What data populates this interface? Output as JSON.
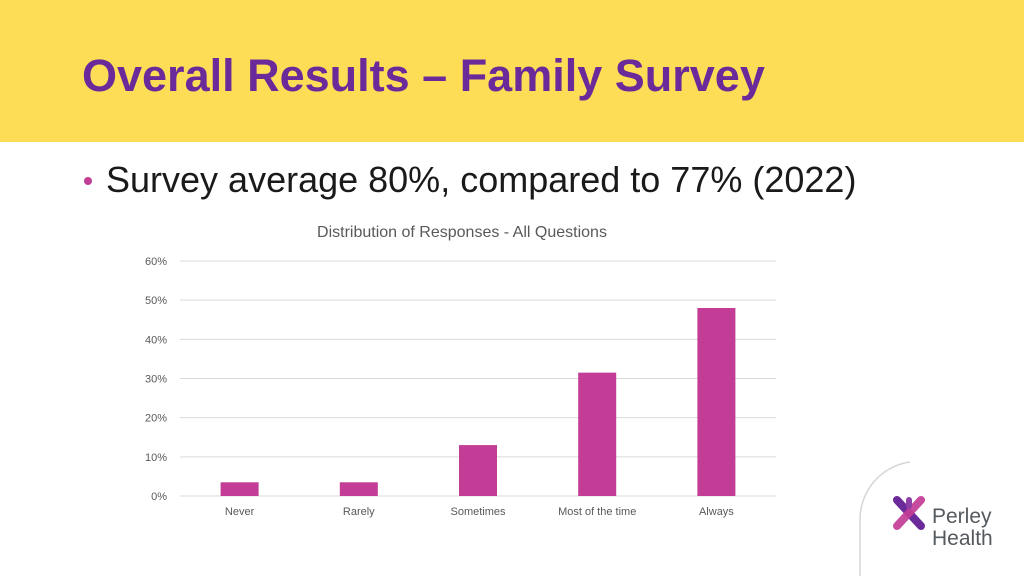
{
  "slide": {
    "title": "Overall Results – Family Survey",
    "bullet": "Survey average 80%, compared to 77% (2022)"
  },
  "colors": {
    "header_band": "#FEDD56",
    "title": "#6B2A99",
    "bar": "#C33D96",
    "bullet": "#C33D96",
    "grid": "#d9d9d9"
  },
  "logo": {
    "line1": "Perley",
    "line2": "Health",
    "icon": "perley-cross-icon"
  },
  "chart_data": {
    "type": "bar",
    "title": "Distribution of Responses - All Questions",
    "categories": [
      "Never",
      "Rarely",
      "Sometimes",
      "Most of the time",
      "Always"
    ],
    "values": [
      3.5,
      3.5,
      13,
      31.5,
      48
    ],
    "y_unit": "%",
    "ylim": [
      0,
      60
    ],
    "yticks": [
      0,
      10,
      20,
      30,
      40,
      50,
      60
    ],
    "ytick_labels": [
      "0%",
      "10%",
      "20%",
      "30%",
      "40%",
      "50%",
      "60%"
    ],
    "grid": true,
    "legend": "none",
    "xlabel": "",
    "ylabel": ""
  }
}
